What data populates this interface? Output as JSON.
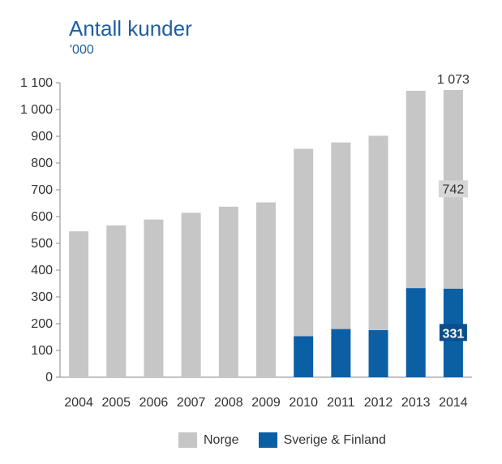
{
  "title": "Antall kunder",
  "subtitle": "'000",
  "colors": {
    "norge": "#c6c6c6",
    "sverige_finland": "#0b5fa5",
    "axis": "#888888"
  },
  "chart_data": {
    "type": "bar",
    "stacked": true,
    "title": "Antall kunder",
    "subtitle": "'000",
    "categories": [
      "2004",
      "2005",
      "2006",
      "2007",
      "2008",
      "2009",
      "2010",
      "2011",
      "2012",
      "2013",
      "2014"
    ],
    "series": [
      {
        "name": "Sverige & Finland",
        "values": [
          0,
          0,
          0,
          0,
          0,
          0,
          153,
          180,
          176,
          333,
          331
        ]
      },
      {
        "name": "Norge",
        "values": [
          545,
          567,
          589,
          614,
          637,
          653,
          700,
          697,
          726,
          737,
          742
        ]
      }
    ],
    "ylim": [
      0,
      1100
    ],
    "yticks": [
      0,
      100,
      200,
      300,
      400,
      500,
      600,
      700,
      800,
      900,
      1000,
      1100
    ],
    "ytick_labels": [
      "0",
      "100",
      "200",
      "300",
      "400",
      "500",
      "600",
      "700",
      "800",
      "900",
      "1 000",
      "1 100"
    ],
    "annotations": [
      {
        "category": "2014",
        "series": "Norge",
        "label": "742"
      },
      {
        "category": "2014",
        "series": "Sverige & Finland",
        "label": "331"
      },
      {
        "category": "2014",
        "position": "total",
        "label": "1 073"
      }
    ],
    "legend": "bottom",
    "grid": false
  }
}
